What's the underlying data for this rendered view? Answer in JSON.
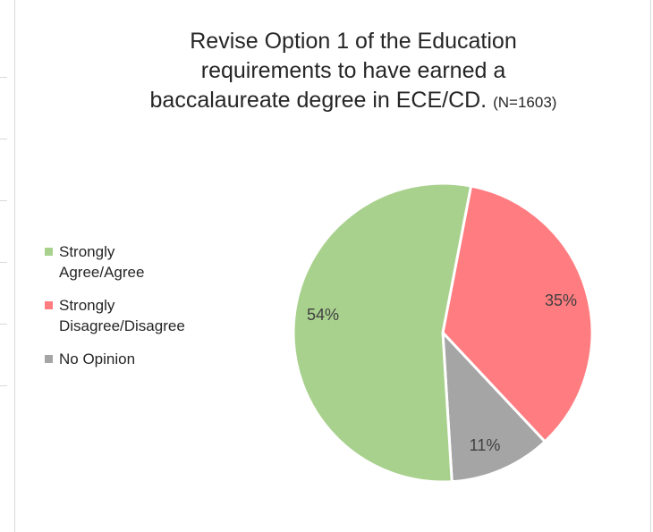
{
  "chart_data": {
    "type": "pie",
    "title": {
      "line1": "Revise Option 1 of the Education",
      "line2": "requirements to have earned a",
      "line3": "baccalaureate degree in ECE/CD.",
      "note": "(N=1603)"
    },
    "categories": [
      "Strongly Agree/Agree",
      "Strongly Disagree/Disagree",
      "No Opinion"
    ],
    "values": [
      54,
      35,
      11
    ],
    "data_labels": [
      "54%",
      "35%",
      "11%"
    ],
    "colors": [
      "#a9d18e",
      "#ff7c80",
      "#a5a5a5"
    ],
    "legend_placement": "left",
    "legend": [
      {
        "line1": "Strongly",
        "line2": "Agree/Agree",
        "color": "#a9d18e"
      },
      {
        "line1": "Strongly",
        "line2": "Disagree/Disagree",
        "color": "#ff7c80"
      },
      {
        "line1": "No Opinion",
        "line2": "",
        "color": "#a5a5a5"
      }
    ]
  }
}
